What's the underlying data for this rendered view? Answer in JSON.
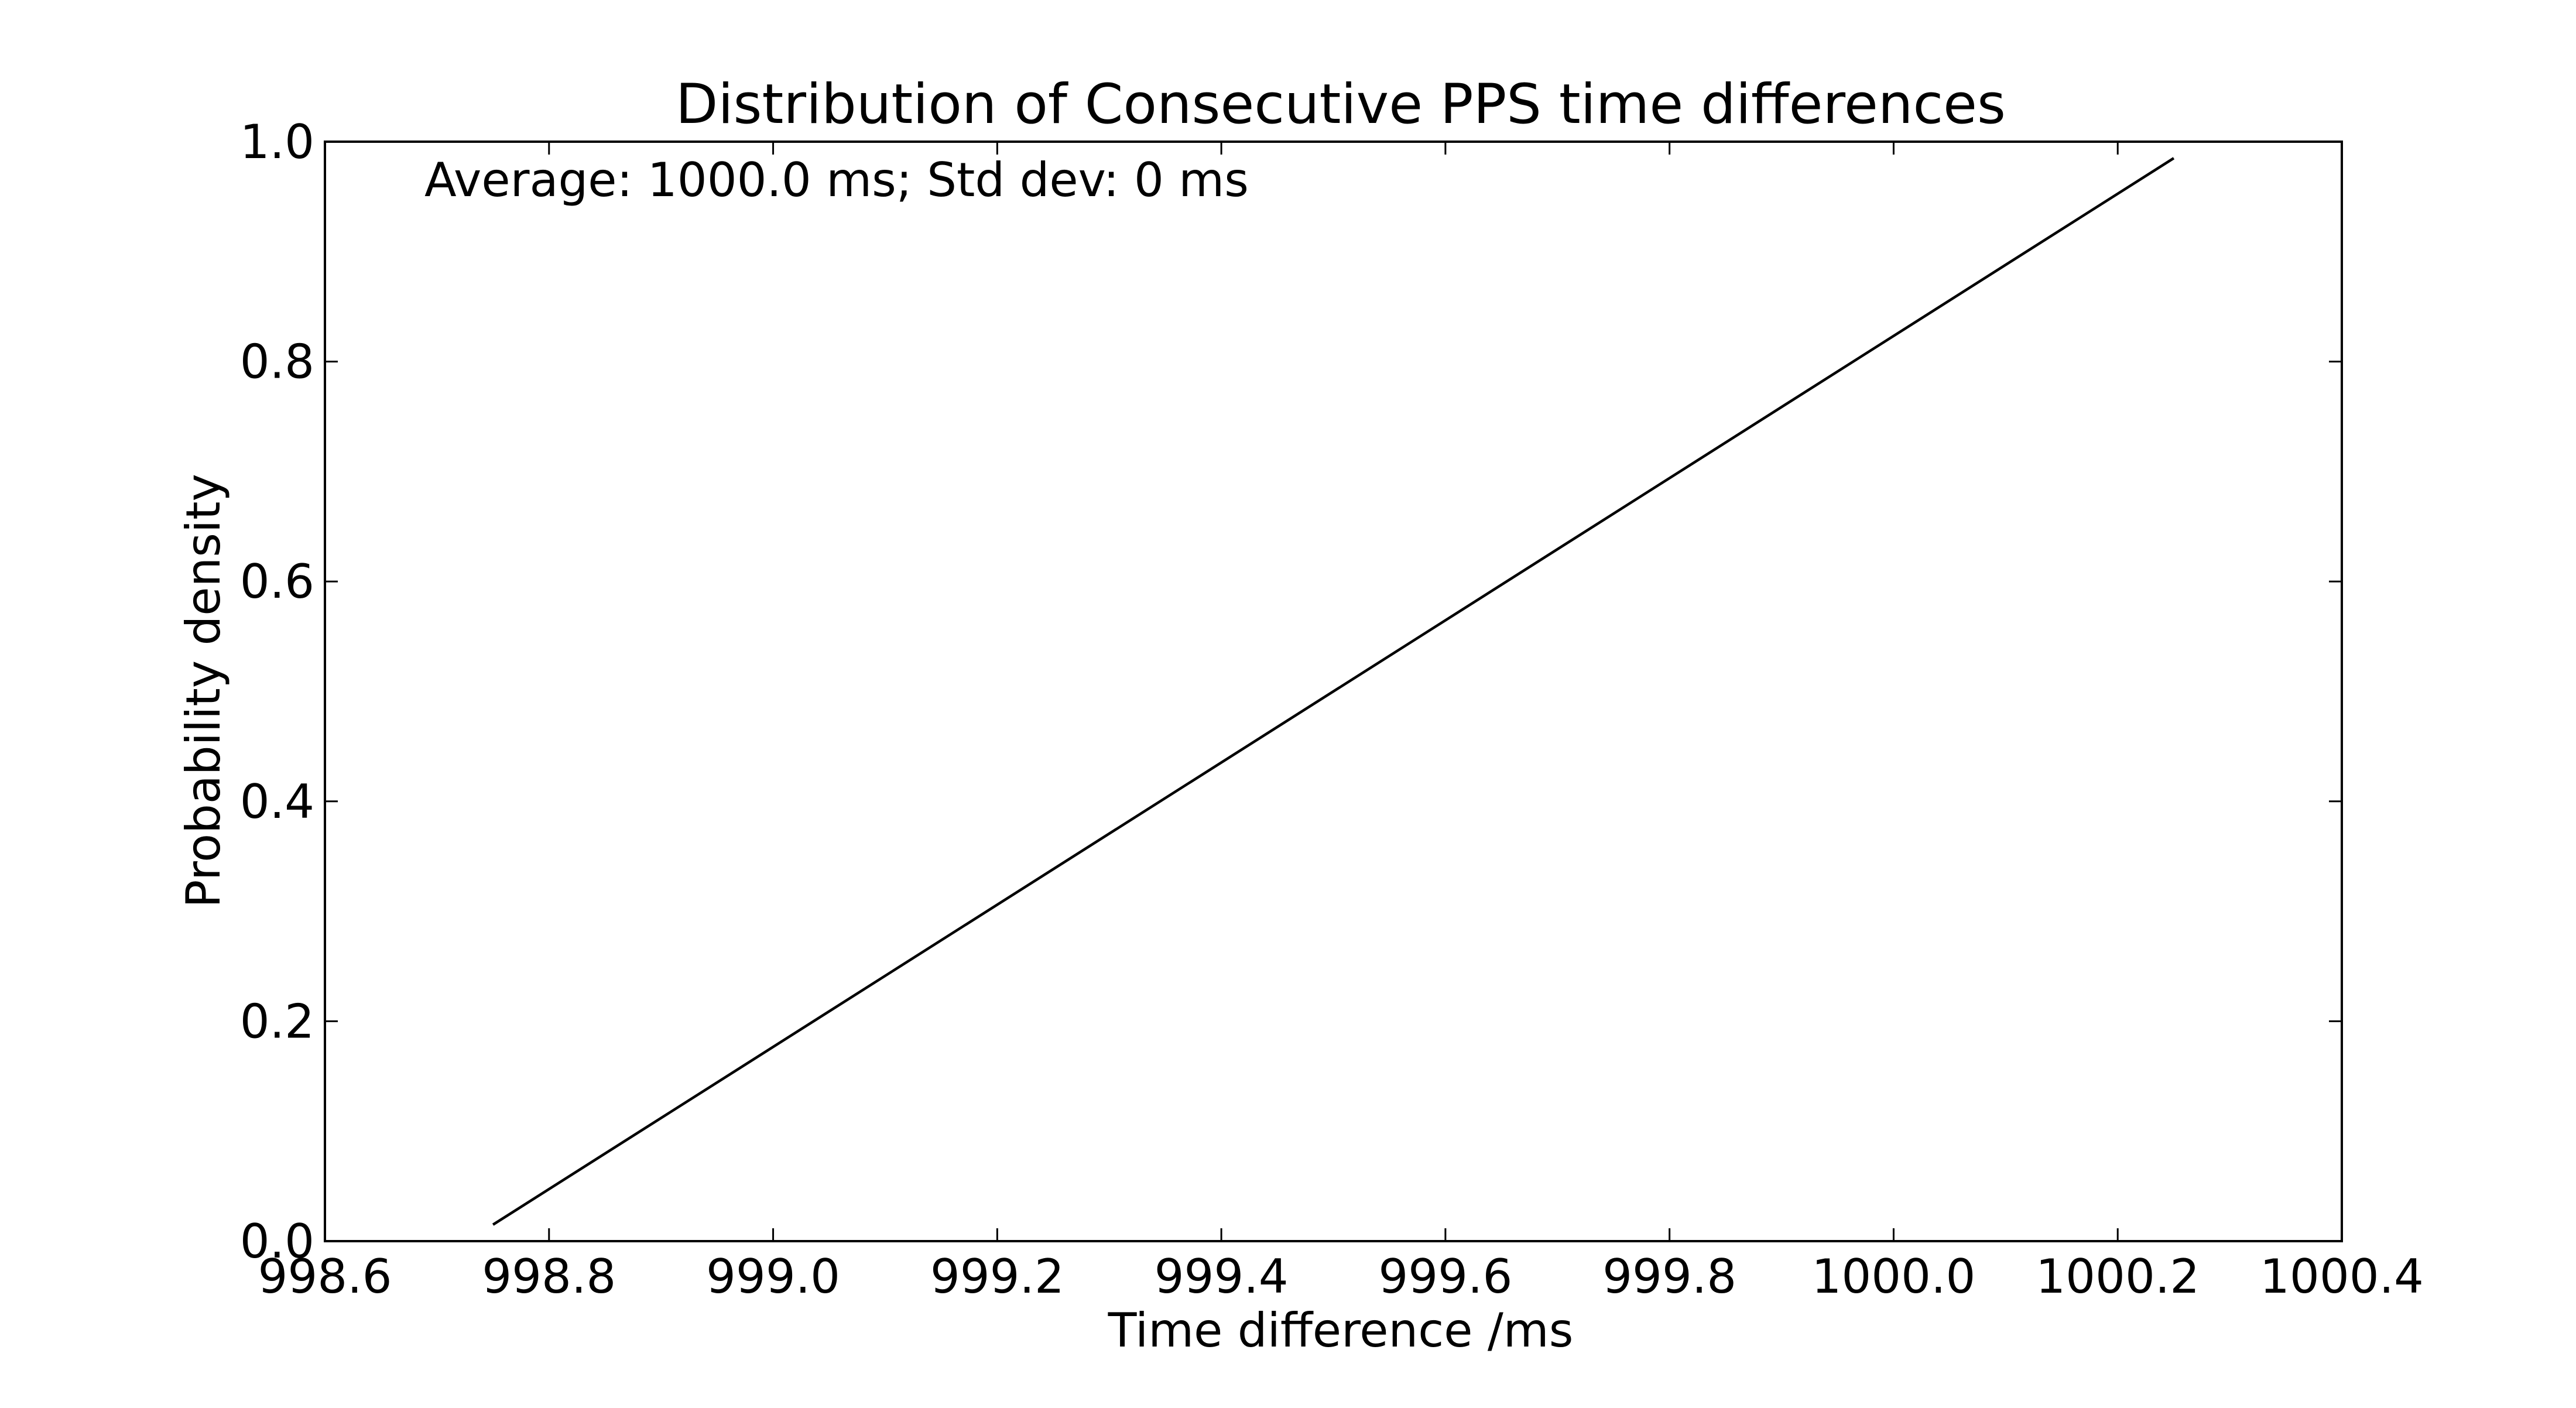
{
  "chart_data": {
    "type": "line",
    "title": "Distribution of Consecutive PPS time differences",
    "xlabel": "Time difference /ms",
    "ylabel": "Probability density",
    "annotation": "Average: 1000.0 ms;  Std dev: 0 ms",
    "xlim": [
      998.6,
      1000.4
    ],
    "ylim": [
      0.0,
      1.0
    ],
    "xticks": [
      998.6,
      998.8,
      999.0,
      999.2,
      999.4,
      999.6,
      999.8,
      1000.0,
      1000.2,
      1000.4
    ],
    "xtick_labels": [
      "998.6",
      "998.8",
      "999.0",
      "999.2",
      "999.4",
      "999.6",
      "999.8",
      "1000.0",
      "1000.2",
      "1000.4"
    ],
    "yticks": [
      0.0,
      0.2,
      0.4,
      0.6,
      0.8,
      1.0
    ],
    "ytick_labels": [
      "0.0",
      "0.2",
      "0.4",
      "0.6",
      "0.8",
      "1.0"
    ],
    "grid": false,
    "legend": "none",
    "colors": {
      "line": "#000000",
      "axes": "#000000"
    },
    "series": [
      {
        "x": [
          998.75,
          1000.25
        ],
        "y": [
          0.015,
          0.985
        ]
      }
    ]
  }
}
